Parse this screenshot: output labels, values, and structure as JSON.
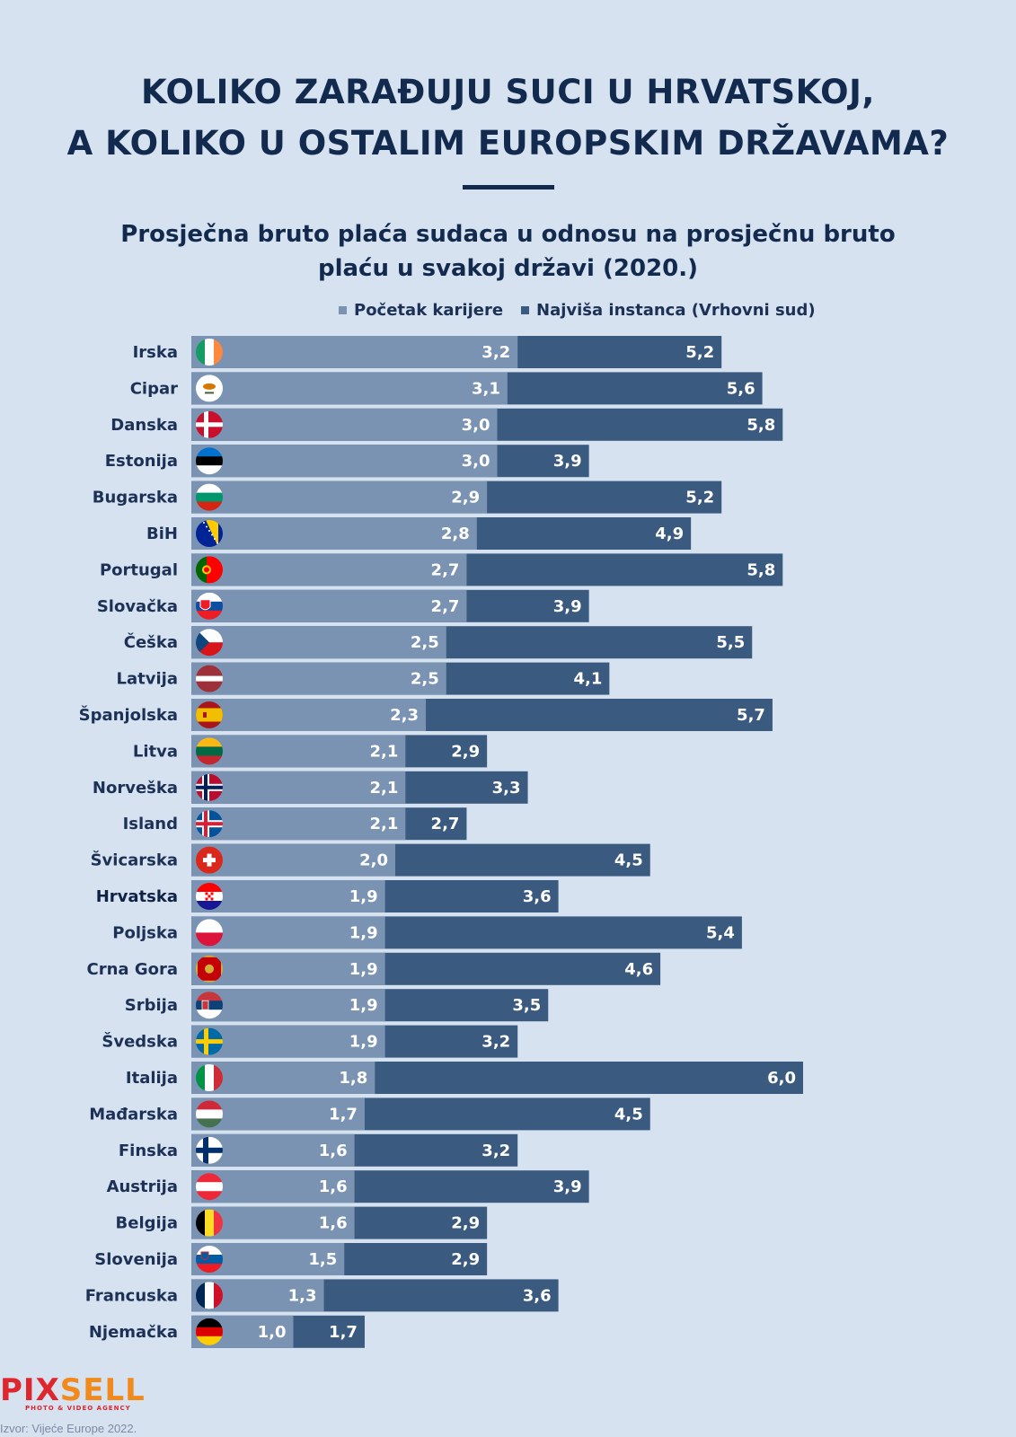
{
  "header": {
    "title_line1": "KOLIKO ZARAĐUJU SUCI U HRVATSKOJ,",
    "title_line2": "A KOLIKO U OSTALIM EUROPSKIM DRŽAVAMA?",
    "subtitle_line1": "Prosječna bruto plaća sudaca u odnosu na prosječnu bruto",
    "subtitle_line2": "plaću u svakoj državi (2020.)"
  },
  "legend": {
    "start_label": "Početak karijere",
    "top_label": "Najviša instanca (Vrhovni sud)"
  },
  "colors": {
    "background": "#d6e2f0",
    "start": "#7b93b3",
    "top": "#3b5a80",
    "text": "#132a4f"
  },
  "chart_data": {
    "type": "bar",
    "orientation": "horizontal",
    "stacked_overlay": true,
    "categories": [
      "Irska",
      "Cipar",
      "Danska",
      "Estonija",
      "Bugarska",
      "BiH",
      "Portugal",
      "Slovačka",
      "Češka",
      "Latvija",
      "Španjolska",
      "Litva",
      "Norveška",
      "Island",
      "Švicarska",
      "Hrvatska",
      "Poljska",
      "Crna Gora",
      "Srbija",
      "Švedska",
      "Italija",
      "Mađarska",
      "Finska",
      "Austrija",
      "Belgija",
      "Slovenija",
      "Francuska",
      "Njemačka"
    ],
    "flags": [
      "ireland-flag",
      "cyprus-flag",
      "denmark-flag",
      "estonia-flag",
      "bulgaria-flag",
      "bih-flag",
      "portugal-flag",
      "slovakia-flag",
      "czechia-flag",
      "latvia-flag",
      "spain-flag",
      "lithuania-flag",
      "norway-flag",
      "iceland-flag",
      "switzerland-flag",
      "croatia-flag",
      "poland-flag",
      "montenegro-flag",
      "serbia-flag",
      "sweden-flag",
      "italy-flag",
      "hungary-flag",
      "finland-flag",
      "austria-flag",
      "belgium-flag",
      "slovenia-flag",
      "france-flag",
      "germany-flag"
    ],
    "highlight": "Hrvatska",
    "series": [
      {
        "name": "Početak karijere",
        "values": [
          3.2,
          3.1,
          3.0,
          3.0,
          2.9,
          2.8,
          2.7,
          2.7,
          2.5,
          2.5,
          2.3,
          2.1,
          2.1,
          2.1,
          2.0,
          1.9,
          1.9,
          1.9,
          1.9,
          1.9,
          1.8,
          1.7,
          1.6,
          1.6,
          1.6,
          1.5,
          1.3,
          1.0
        ],
        "labels": [
          "3,2",
          "3,1",
          "3,0",
          "3,0",
          "2,9",
          "2,8",
          "2,7",
          "2,7",
          "2,5",
          "2,5",
          "2,3",
          "2,1",
          "2,1",
          "2,1",
          "2,0",
          "1,9",
          "1,9",
          "1,9",
          "1,9",
          "1,9",
          "1,8",
          "1,7",
          "1,6",
          "1,6",
          "1,6",
          "1,5",
          "1,3",
          "1,0"
        ]
      },
      {
        "name": "Najviša instanca (Vrhovni sud)",
        "values": [
          5.2,
          5.6,
          5.8,
          3.9,
          5.2,
          4.9,
          5.8,
          3.9,
          5.5,
          4.1,
          5.7,
          2.9,
          3.3,
          2.7,
          4.5,
          3.6,
          5.4,
          4.6,
          3.5,
          3.2,
          6.0,
          4.5,
          3.2,
          3.9,
          2.9,
          2.9,
          3.6,
          1.7
        ],
        "labels": [
          "5,2",
          "5,6",
          "5,8",
          "3,9",
          "5,2",
          "4,9",
          "5,8",
          "3,9",
          "5,5",
          "4,1",
          "5,7",
          "2,9",
          "3,3",
          "2,7",
          "4,5",
          "3,6",
          "5,4",
          "4,6",
          "3,5",
          "3,2",
          "6,0",
          "4,5",
          "3,2",
          "3,9",
          "2,9",
          "2,9",
          "3,6",
          "1,7"
        ]
      }
    ]
  },
  "footer": {
    "logo_part1": "PIX",
    "logo_part2": "SELL",
    "logo_tagline": "PHOTO & VIDEO AGENCY",
    "source": "Izvor: Vijeće Europe 2022."
  }
}
